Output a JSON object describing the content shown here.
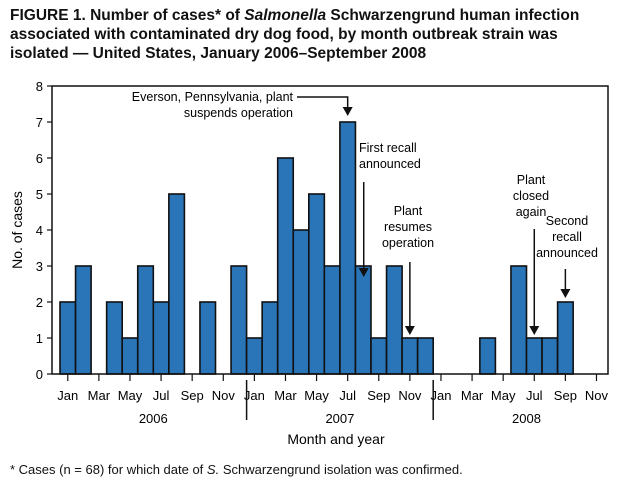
{
  "title_prefix": "FIGURE 1. Number of cases* of ",
  "title_italic": "Salmonella",
  "title_suffix": " Schwarzengrund human infection associated with contaminated dry dog food, by month outbreak strain was isolated — United States, January 2006–September 2008",
  "footnote_prefix": "* Cases (n = 68) for which date of ",
  "footnote_italic": "S.",
  "footnote_suffix": " Schwarzengrund isolation was confirmed.",
  "chart_data": {
    "type": "bar",
    "xlabel": "Month and year",
    "ylabel": "No. of cases",
    "ylim": [
      0,
      8
    ],
    "yticks": [
      0,
      1,
      2,
      3,
      4,
      5,
      6,
      7,
      8
    ],
    "grid": false,
    "bar_color": "#2a74b8",
    "years": [
      "2006",
      "2007",
      "2008"
    ],
    "tick_months": [
      "Jan",
      "Mar",
      "May",
      "Jul",
      "Sep",
      "Nov"
    ],
    "categories": [
      "Jan 2006",
      "Feb 2006",
      "Mar 2006",
      "Apr 2006",
      "May 2006",
      "Jun 2006",
      "Jul 2006",
      "Aug 2006",
      "Sep 2006",
      "Oct 2006",
      "Nov 2006",
      "Dec 2006",
      "Jan 2007",
      "Feb 2007",
      "Mar 2007",
      "Apr 2007",
      "May 2007",
      "Jun 2007",
      "Jul 2007",
      "Aug 2007",
      "Sep 2007",
      "Oct 2007",
      "Nov 2007",
      "Dec 2007",
      "Jan 2008",
      "Feb 2008",
      "Mar 2008",
      "Apr 2008",
      "May 2008",
      "Jun 2008",
      "Jul 2008",
      "Aug 2008",
      "Sep 2008"
    ],
    "values": [
      2,
      3,
      0,
      2,
      1,
      3,
      2,
      5,
      0,
      2,
      0,
      3,
      1,
      2,
      6,
      4,
      5,
      3,
      7,
      3,
      1,
      3,
      1,
      1,
      0,
      0,
      0,
      1,
      0,
      3,
      1,
      1,
      2
    ],
    "annotations": [
      {
        "lines": [
          "Everson, Pennsylvania, plant",
          "suspends operation"
        ],
        "month": "Jul 2007"
      },
      {
        "lines": [
          "First recall",
          "announced"
        ],
        "month": "Aug 2007"
      },
      {
        "lines": [
          "Plant",
          "resumes",
          "operation"
        ],
        "month": "Nov 2007"
      },
      {
        "lines": [
          "Plant",
          "closed",
          "again"
        ],
        "month": "Jul 2008"
      },
      {
        "lines": [
          "Second",
          "recall",
          "announced"
        ],
        "month": "Sep 2008"
      }
    ]
  }
}
